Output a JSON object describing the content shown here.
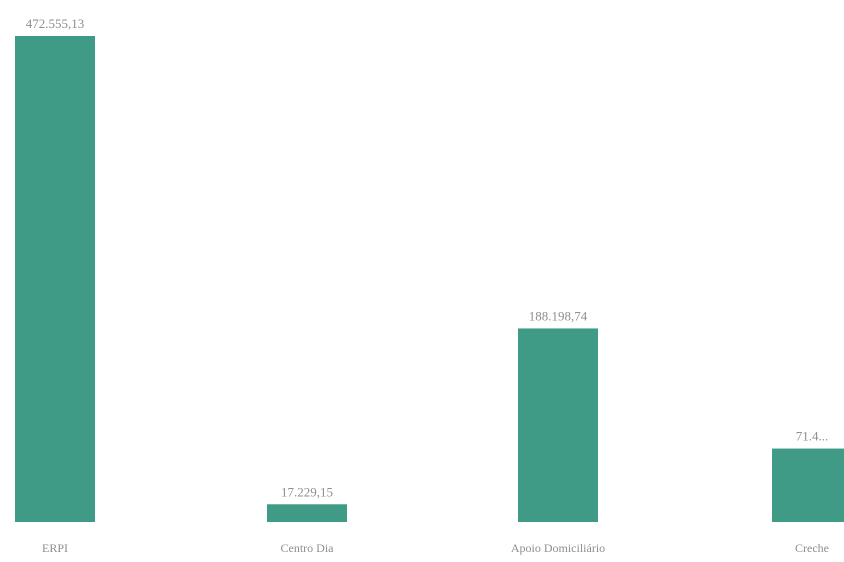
{
  "chart_data": {
    "type": "bar",
    "title": "",
    "xlabel": "",
    "ylabel": "",
    "categories": [
      "ERPI",
      "Centro Dia",
      "Apoio Domiciliário",
      "Creche"
    ],
    "values": [
      472555.13,
      17229.15,
      188198.74,
      71400
    ],
    "value_labels": [
      "472.555,13",
      "17.229,15",
      "188.198,74",
      "71.4..."
    ],
    "ylim": [
      0,
      472555.13
    ],
    "grid": false,
    "legend": "none",
    "colors": {
      "bar": "#3f9a86",
      "text": "#8a8f93",
      "background": "#ffffff"
    }
  }
}
